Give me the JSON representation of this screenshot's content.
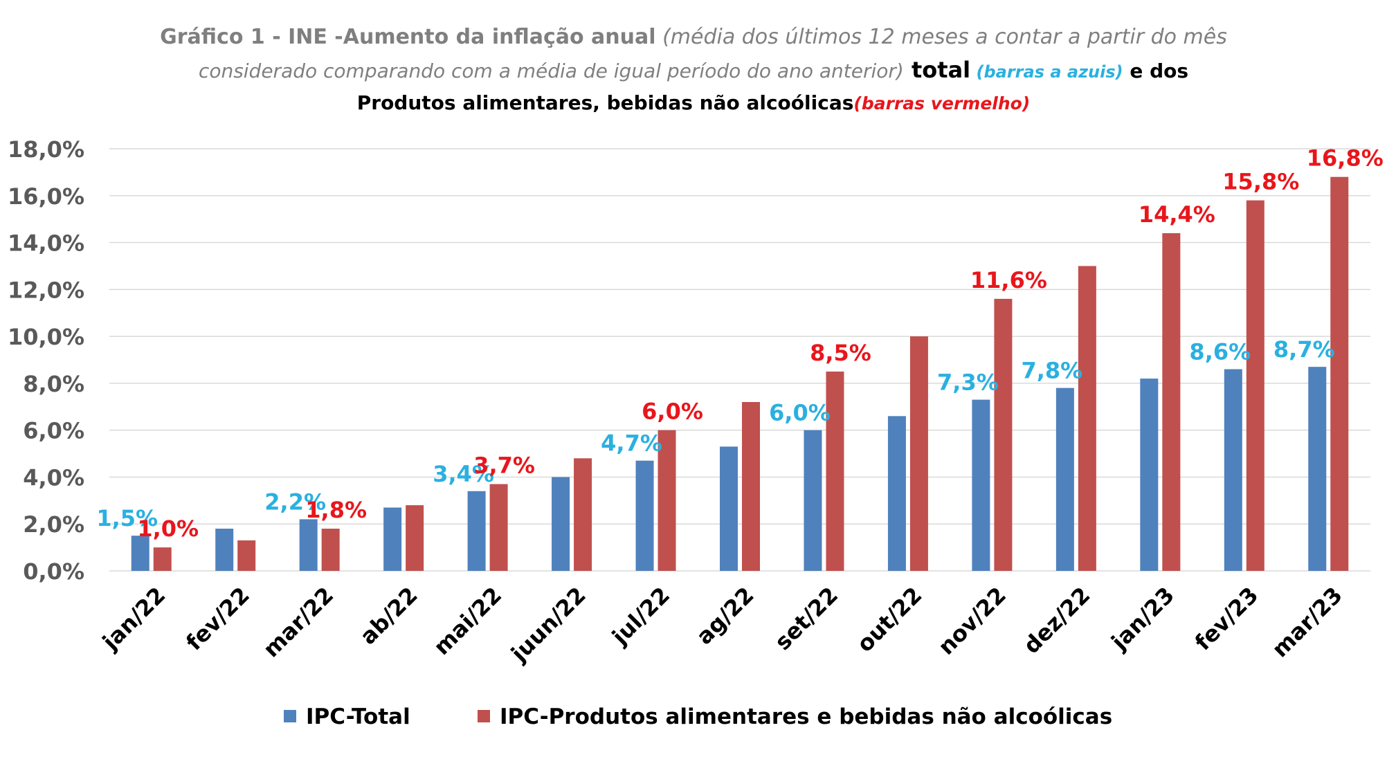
{
  "title": {
    "line1_bold": "Gráfico 1 - INE -Aumento da inflação anual",
    "line1_italic": " (média dos últimos 12 meses a contar a partir do mês",
    "line2_italic": "considerado comparando com a média de igual período do ano anterior)",
    "line2_bold": " total",
    "line2_blue": " (barras a azuis)",
    "line2_bold_end": " e dos",
    "line3_bold": "Produtos alimentares, bebidas não alcoólicas",
    "line3_red": "(barras vermelho)"
  },
  "colors": {
    "title_gray": "#7f7f7f",
    "text_dark": "#000000",
    "axis_text": "#595959",
    "total_bar": "#4f81bd",
    "food_bar": "#c0504d",
    "total_label": "#2ab0e0",
    "food_label": "#e8161b",
    "grid": "#d9d9d9"
  },
  "chart_data": {
    "type": "bar",
    "categories": [
      "jan/22",
      "fev/22",
      "mar/22",
      "ab/22",
      "mai/22",
      "juun/22",
      "jul/22",
      "ag/22",
      "set/22",
      "out/22",
      "nov/22",
      "dez/22",
      "jan/23",
      "fev/23",
      "mar/23"
    ],
    "series": [
      {
        "name": "IPC-Total",
        "values": [
          1.5,
          1.8,
          2.2,
          2.7,
          3.4,
          4.0,
          4.7,
          5.3,
          6.0,
          6.6,
          7.3,
          7.8,
          8.2,
          8.6,
          8.7
        ],
        "labels": [
          "1,5%",
          "",
          "2,2%",
          "",
          "3,4%",
          "",
          "4,7%",
          "",
          "6,0%",
          "",
          "7,3%",
          "7,8%",
          "",
          "8,6%",
          "8,7%"
        ]
      },
      {
        "name": "IPC-Produtos alimentares e bebidas não alcoólicas",
        "values": [
          1.0,
          1.3,
          1.8,
          2.8,
          3.7,
          4.8,
          6.0,
          7.2,
          8.5,
          10.0,
          11.6,
          13.0,
          14.4,
          15.8,
          16.8
        ],
        "labels": [
          "1,0%",
          "",
          "1,8%",
          "",
          "3,7%",
          "",
          "6,0%",
          "",
          "8,5%",
          "",
          "11,6%",
          "",
          "14,4%",
          "15,8%",
          "16,8%"
        ]
      }
    ],
    "ylim": [
      0,
      18
    ],
    "yticks": [
      "0,0%",
      "2,0%",
      "4,0%",
      "6,0%",
      "8,0%",
      "10,0%",
      "12,0%",
      "14,0%",
      "16,0%",
      "18,0%"
    ],
    "ytick_values": [
      0,
      2,
      4,
      6,
      8,
      10,
      12,
      14,
      16,
      18
    ],
    "grid": true,
    "legend_position": "bottom"
  }
}
